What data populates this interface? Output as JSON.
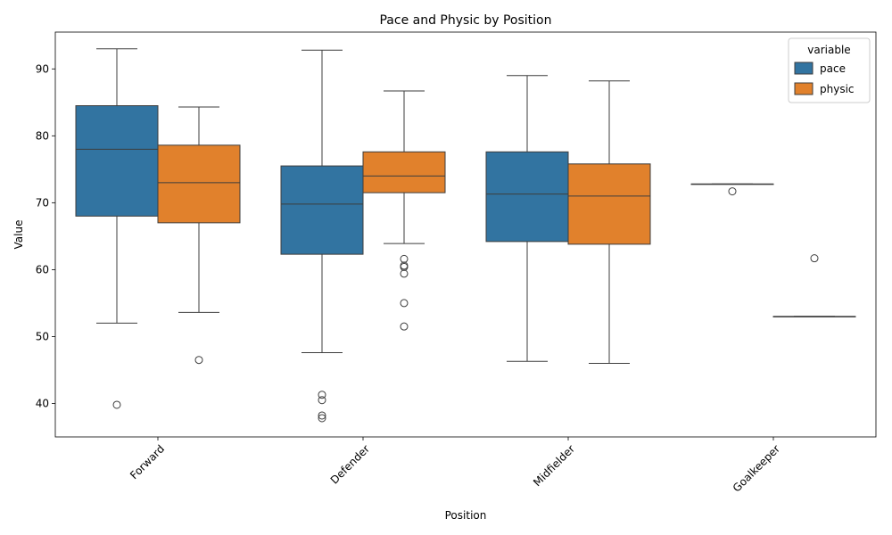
{
  "chart_data": {
    "type": "box",
    "title": "Pace and Physic by Position",
    "xlabel": "Position",
    "ylabel": "Value",
    "ylim": [
      35,
      95.5
    ],
    "yticks": [
      40,
      50,
      60,
      70,
      80,
      90
    ],
    "categories": [
      "Forward",
      "Defender",
      "Midfielder",
      "Goalkeeper"
    ],
    "legend": {
      "title": "variable",
      "placement": "top-right"
    },
    "series": [
      {
        "name": "pace",
        "color": "#3274a1",
        "boxes": [
          {
            "whisker_low": 52.0,
            "q1": 68.0,
            "median": 78.0,
            "q3": 84.5,
            "whisker_high": 93.0,
            "outliers": [
              39.8
            ]
          },
          {
            "whisker_low": 47.6,
            "q1": 62.3,
            "median": 69.8,
            "q3": 75.5,
            "whisker_high": 92.8,
            "outliers": [
              41.3,
              40.5,
              38.2,
              37.8
            ]
          },
          {
            "whisker_low": 46.3,
            "q1": 64.2,
            "median": 71.3,
            "q3": 77.6,
            "whisker_high": 89.0,
            "outliers": []
          },
          {
            "whisker_low": 72.8,
            "q1": 72.8,
            "median": 72.8,
            "q3": 72.8,
            "whisker_high": 72.8,
            "outliers": [
              71.7
            ]
          }
        ]
      },
      {
        "name": "physic",
        "color": "#e1812c",
        "boxes": [
          {
            "whisker_low": 53.6,
            "q1": 67.0,
            "median": 73.0,
            "q3": 78.6,
            "whisker_high": 84.3,
            "outliers": [
              46.5
            ]
          },
          {
            "whisker_low": 63.9,
            "q1": 71.5,
            "median": 74.0,
            "q3": 77.6,
            "whisker_high": 86.7,
            "outliers": [
              61.6,
              60.6,
              60.4,
              59.4,
              55.0,
              51.5
            ]
          },
          {
            "whisker_low": 46.0,
            "q1": 63.8,
            "median": 71.0,
            "q3": 75.8,
            "whisker_high": 88.2,
            "outliers": []
          },
          {
            "whisker_low": 53.0,
            "q1": 53.0,
            "median": 53.0,
            "q3": 53.0,
            "whisker_high": 53.0,
            "outliers": [
              61.7
            ]
          }
        ]
      }
    ]
  }
}
